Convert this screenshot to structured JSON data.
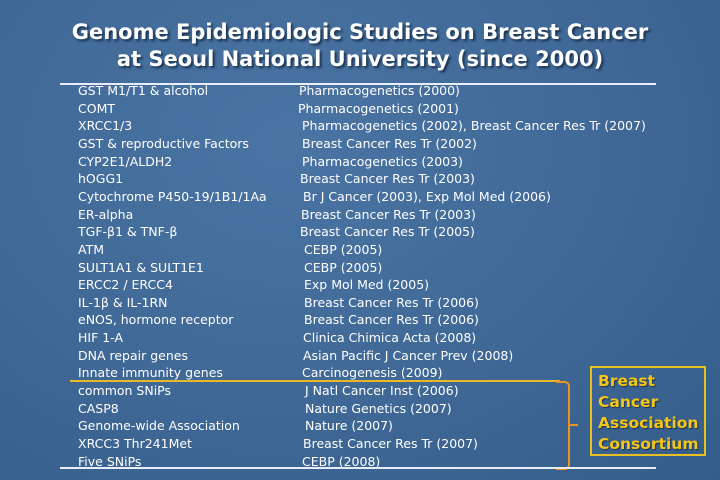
{
  "title": {
    "line1": "Genome Epidemiologic Studies on Breast Cancer",
    "line2": "at Seoul National University (since 2000)"
  },
  "rows": [
    {
      "study": "GST M1/T1 & alcohol",
      "publication": "Pharmacogenetics (2000)"
    },
    {
      "study": "COMT",
      "publication": "Pharmacogenetics (2001)"
    },
    {
      "study": "XRCC1/3",
      "publication": "Pharmacogenetics (2002), Breast Cancer Res Tr (2007)"
    },
    {
      "study": "GST & reproductive Factors",
      "publication": "Breast Cancer Res Tr (2002)"
    },
    {
      "study": "CYP2E1/ALDH2",
      "publication": "Pharmacogenetics (2003)"
    },
    {
      "study": "hOGG1",
      "publication": "Breast Cancer Res Tr (2003)"
    },
    {
      "study": "Cytochrome P450-19/1B1/1Aa",
      "publication": "Br J Cancer (2003), Exp Mol Med (2006)"
    },
    {
      "study": "ER-alpha",
      "publication": "Breast Cancer Res Tr (2003)"
    },
    {
      "study": "TGF-β1 & TNF-β",
      "publication": "Breast Cancer Res Tr (2005)"
    },
    {
      "study": "ATM",
      "publication": "CEBP (2005)"
    },
    {
      "study": "SULT1A1 & SULT1E1",
      "publication": "CEBP (2005)"
    },
    {
      "study": "ERCC2 / ERCC4",
      "publication": "Exp Mol Med (2005)"
    },
    {
      "study": "IL-1β & IL-1RN",
      "publication": "Breast Cancer Res Tr (2006)"
    },
    {
      "study": "eNOS, hormone receptor",
      "publication": "Breast Cancer Res Tr (2006)"
    },
    {
      "study": "HIF 1-A",
      "publication": "Clinica Chimica Acta (2008)"
    },
    {
      "study": "DNA repair genes",
      "publication": "Asian Pacific J Cancer Prev (2008)"
    },
    {
      "study": "Innate immunity genes",
      "publication": "Carcinogenesis (2009)"
    },
    {
      "study": "common SNiPs",
      "publication": "J Natl Cancer Inst  (2006)"
    },
    {
      "study": "CASP8",
      "publication": "Nature Genetics (2007)"
    },
    {
      "study": "Genome-wide Association",
      "publication": "Nature (2007)"
    },
    {
      "study": "XRCC3 Thr241Met",
      "publication": "Breast Cancer Res Tr (2007)"
    },
    {
      "study": "Five SNiPs",
      "publication": "CEBP (2008)"
    }
  ],
  "consortium": {
    "lines": [
      "Breast",
      "Cancer",
      "Association",
      "Consortium"
    ]
  },
  "colors": {
    "background": "#3f6896",
    "consortium_text": "#f5c518",
    "bracket": "#e8951f",
    "divider": "#e8b828"
  }
}
